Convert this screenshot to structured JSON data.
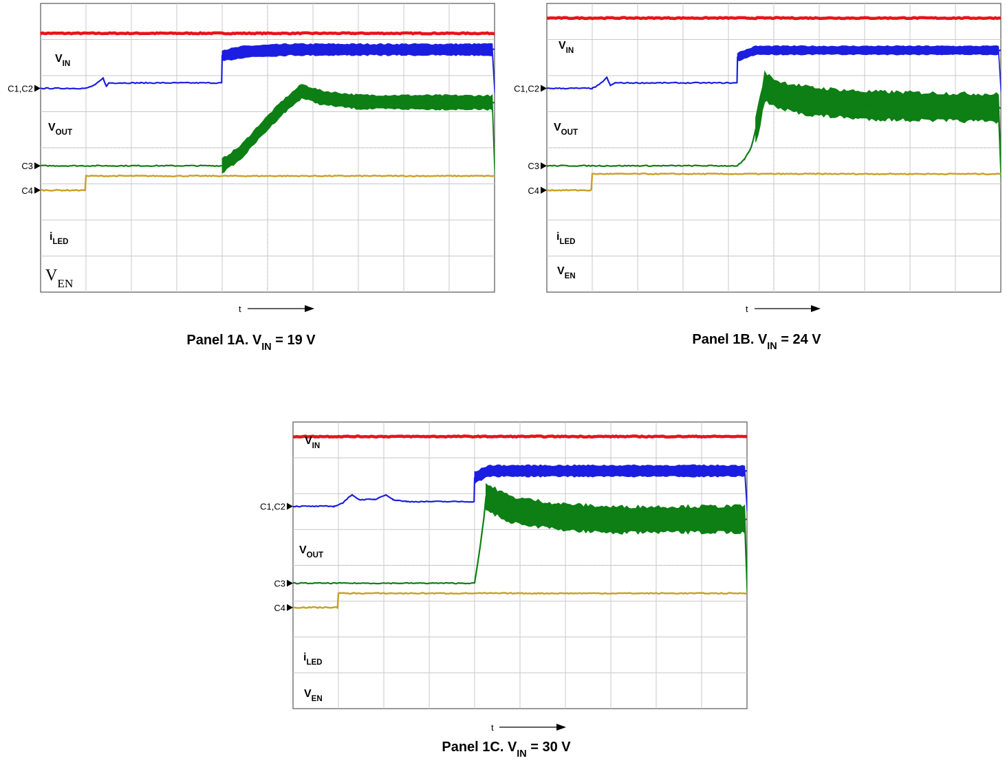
{
  "colors": {
    "vin": "#e8141c",
    "vout": "#1b1ee0",
    "iled": "#0d7f14",
    "ven": "#c9a227",
    "grid": "#c8c8c8",
    "frame": "#555555"
  },
  "time_axis_label": "t",
  "chart_data": [
    {
      "type": "line",
      "caption": {
        "prefix": "Panel 1A. V",
        "sub": "IN",
        "suffix": " = 19  V"
      },
      "x_label": "t",
      "grid": true,
      "markers": {
        "c12": "C1,C2",
        "c3": "C3",
        "c4": "C4"
      },
      "series": [
        {
          "key": "vin",
          "name_main": "V",
          "name_sub": "IN",
          "color": "#e8141c",
          "points": [
            [
              0,
              7.62
            ],
            [
              10,
              7.62
            ]
          ]
        },
        {
          "key": "vout",
          "name_main": "V",
          "name_sub": "OUT",
          "color": "#1b1ee0",
          "band_from": 4.0,
          "band_amp": 0.16,
          "points": [
            [
              0,
              6.0
            ],
            [
              1.0,
              6.0
            ],
            [
              1.2,
              6.1
            ],
            [
              1.38,
              6.3
            ],
            [
              1.45,
              6.05
            ],
            [
              1.5,
              6.16
            ],
            [
              2.2,
              6.16
            ],
            [
              3.99,
              6.16
            ],
            [
              4.0,
              6.96
            ],
            [
              4.5,
              7.08
            ],
            [
              5.5,
              7.14
            ],
            [
              10,
              7.14
            ]
          ]
        },
        {
          "key": "iled",
          "name_main": "i",
          "name_sub": "LED",
          "color": "#0d7f14",
          "band_from": 4.0,
          "band_amp": 0.2,
          "points": [
            [
              0,
              3.72
            ],
            [
              4.0,
              3.72
            ],
            [
              4.4,
              4.1
            ],
            [
              4.8,
              4.7
            ],
            [
              5.3,
              5.4
            ],
            [
              5.75,
              5.92
            ],
            [
              6.2,
              5.72
            ],
            [
              7.0,
              5.6
            ],
            [
              10,
              5.58
            ]
          ]
        },
        {
          "key": "ven",
          "name_main": "V",
          "name_sub": "EN",
          "color": "#c9a227",
          "points": [
            [
              0,
              3.0
            ],
            [
              0.98,
              3.0
            ],
            [
              1.0,
              3.42
            ],
            [
              10,
              3.42
            ]
          ]
        }
      ]
    },
    {
      "type": "line",
      "caption": {
        "prefix": "Panel 1B. V",
        "sub": "IN",
        "suffix": " = 24  V"
      },
      "x_label": "t",
      "grid": true,
      "markers": {
        "c12": "C1,C2",
        "c3": "C3",
        "c4": "C4"
      },
      "series": [
        {
          "key": "vin",
          "name_main": "V",
          "name_sub": "IN",
          "color": "#e8141c",
          "points": [
            [
              0,
              8.07
            ],
            [
              10,
              8.07
            ]
          ]
        },
        {
          "key": "vout",
          "name_main": "V",
          "name_sub": "OUT",
          "color": "#1b1ee0",
          "band_from": 4.2,
          "band_amp": 0.12,
          "points": [
            [
              0,
              6.0
            ],
            [
              1.0,
              6.0
            ],
            [
              1.15,
              6.1
            ],
            [
              1.32,
              6.32
            ],
            [
              1.4,
              6.08
            ],
            [
              1.5,
              6.16
            ],
            [
              4.19,
              6.16
            ],
            [
              4.2,
              6.92
            ],
            [
              4.6,
              7.12
            ],
            [
              10,
              7.12
            ]
          ]
        },
        {
          "key": "iled",
          "name_main": "i",
          "name_sub": "LED",
          "color": "#0d7f14",
          "band_from": 4.6,
          "band_amp": 0.4,
          "points": [
            [
              0,
              3.72
            ],
            [
              4.2,
              3.72
            ],
            [
              4.35,
              3.9
            ],
            [
              4.5,
              4.25
            ],
            [
              4.68,
              5.2
            ],
            [
              4.8,
              6.05
            ],
            [
              5.1,
              5.8
            ],
            [
              5.8,
              5.62
            ],
            [
              7.0,
              5.5
            ],
            [
              10,
              5.42
            ]
          ]
        },
        {
          "key": "ven",
          "name_main": "V",
          "name_sub": "EN",
          "color": "#c9a227",
          "points": [
            [
              0,
              3.0
            ],
            [
              0.98,
              3.0
            ],
            [
              1.0,
              3.48
            ],
            [
              10,
              3.48
            ]
          ]
        }
      ]
    },
    {
      "type": "line",
      "caption": {
        "prefix": "Panel 1C. V",
        "sub": "IN",
        "suffix": " = 30 V"
      },
      "x_label": "t",
      "grid": true,
      "markers": {
        "c12": "C1,C2",
        "c3": "C3",
        "c4": "C4"
      },
      "series": [
        {
          "key": "vin",
          "name_main": "V",
          "name_sub": "IN",
          "color": "#e8141c",
          "points": [
            [
              0,
              8.07
            ],
            [
              10,
              8.07
            ]
          ]
        },
        {
          "key": "vout",
          "name_main": "V",
          "name_sub": "OUT",
          "color": "#1b1ee0",
          "band_from": 4.0,
          "band_amp": 0.16,
          "points": [
            [
              0,
              6.0
            ],
            [
              0.9,
              6.0
            ],
            [
              1.1,
              6.1
            ],
            [
              1.3,
              6.35
            ],
            [
              1.45,
              6.2
            ],
            [
              1.8,
              6.2
            ],
            [
              2.05,
              6.35
            ],
            [
              2.2,
              6.2
            ],
            [
              2.5,
              6.14
            ],
            [
              3.99,
              6.14
            ],
            [
              4.0,
              6.85
            ],
            [
              4.3,
              7.05
            ],
            [
              10,
              7.05
            ]
          ]
        },
        {
          "key": "iled",
          "name_main": "i",
          "name_sub": "LED",
          "color": "#0d7f14",
          "band_from": 4.25,
          "band_amp": 0.38,
          "points": [
            [
              0,
              3.72
            ],
            [
              4.0,
              3.72
            ],
            [
              4.1,
              4.6
            ],
            [
              4.2,
              5.6
            ],
            [
              4.25,
              6.28
            ],
            [
              4.8,
              5.9
            ],
            [
              5.8,
              5.7
            ],
            [
              7.0,
              5.6
            ],
            [
              10,
              5.62
            ]
          ]
        },
        {
          "key": "ven",
          "name_main": "V",
          "name_sub": "EN",
          "color": "#c9a227",
          "points": [
            [
              0,
              3.0
            ],
            [
              0.98,
              3.0
            ],
            [
              1.0,
              3.42
            ],
            [
              10,
              3.42
            ]
          ]
        }
      ]
    }
  ]
}
